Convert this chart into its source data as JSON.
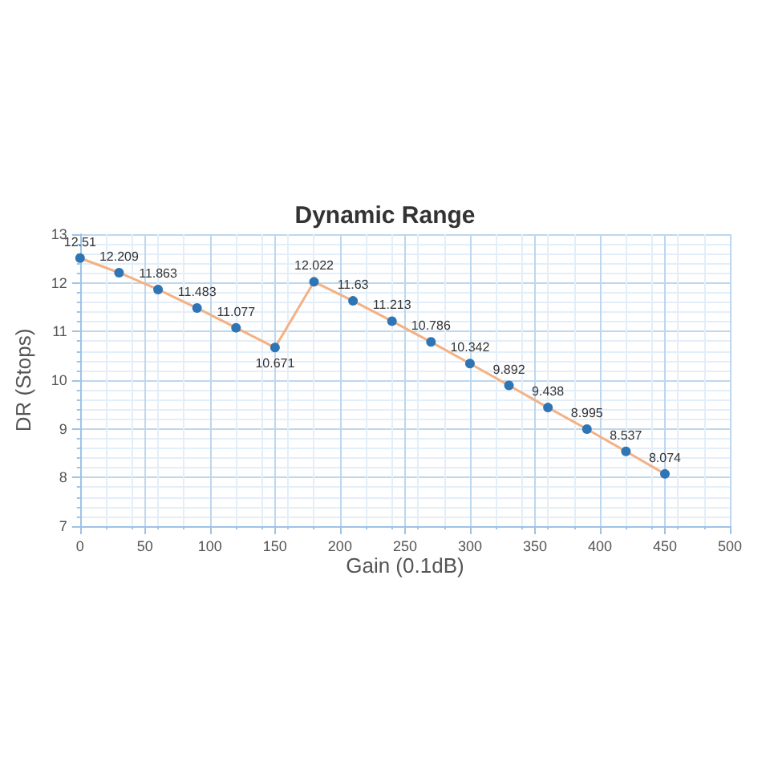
{
  "chart_data": {
    "type": "line",
    "title": "Dynamic Range",
    "xlabel": "Gain (0.1dB)",
    "ylabel": "DR (Stops)",
    "x": [
      0,
      30,
      60,
      90,
      120,
      150,
      180,
      210,
      240,
      270,
      300,
      330,
      360,
      390,
      420,
      450
    ],
    "series": [
      {
        "color": "#f4b183",
        "colors": [
          "#2e75b6",
          "#2e75b6",
          "#2e75b6",
          "#2e75b6",
          "#2e75b6",
          "#2e75b6",
          "#2e75b6",
          "#2e75b6",
          "#2e75b6",
          "#2e75b6",
          "#2e75b6",
          "#2e75b6",
          "#2e75b6",
          "#2e75b6",
          "#2e75b6",
          "#2e75b6"
        ],
        "values": [
          12.51,
          12.209,
          11.863,
          11.483,
          11.077,
          10.671,
          12.022,
          11.63,
          11.213,
          10.786,
          10.342,
          9.892,
          9.438,
          8.995,
          8.537,
          8.074
        ]
      }
    ],
    "xlim": [
      0,
      500
    ],
    "xticks": [
      0,
      50,
      100,
      150,
      200,
      250,
      300,
      350,
      400,
      450,
      500
    ],
    "ylim": [
      7,
      13
    ],
    "yticks": [
      7,
      8,
      9,
      10,
      11,
      12,
      13
    ],
    "grid": true,
    "marker": "circle",
    "line_style": "solid",
    "data_labels": true
  }
}
